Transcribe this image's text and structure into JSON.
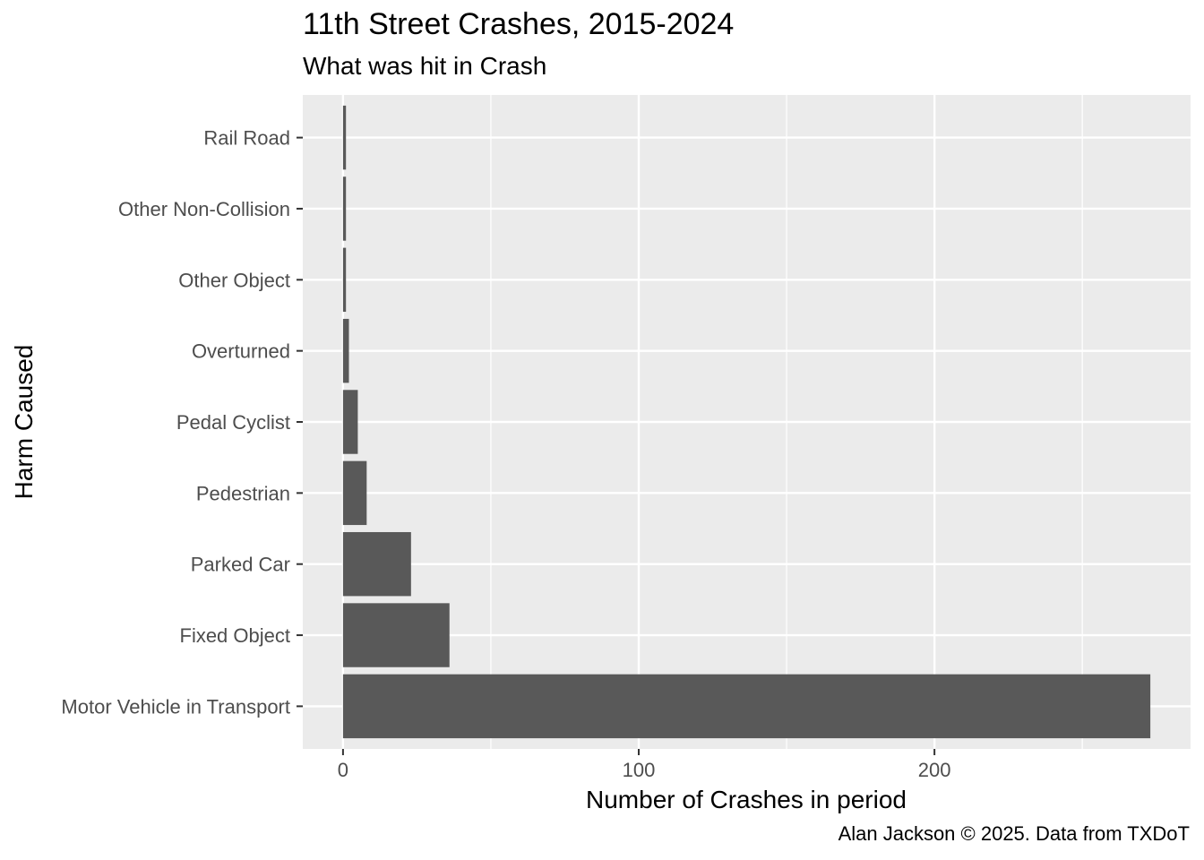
{
  "chart_data": {
    "type": "bar",
    "orientation": "horizontal",
    "title": "11th Street Crashes, 2015-2024",
    "subtitle": "What was hit in Crash",
    "xlabel": "Number of Crashes in period",
    "ylabel": "Harm Caused",
    "caption": "Alan Jackson © 2025. Data from TXDoT",
    "categories": [
      "Motor Vehicle in Transport",
      "Fixed Object",
      "Parked Car",
      "Pedestrian",
      "Pedal Cyclist",
      "Overturned",
      "Other Object",
      "Other Non-Collision",
      "Rail Road"
    ],
    "values": [
      273,
      36,
      23,
      8,
      5,
      2,
      1,
      1,
      1
    ],
    "xlim": [
      -13.6,
      286.6
    ],
    "xticks": [
      0,
      100,
      200
    ],
    "xtick_labels": [
      "0",
      "100",
      "200"
    ],
    "bar_color": "#595959",
    "panel_color": "#ebebeb",
    "grid": true,
    "legend": "none"
  }
}
